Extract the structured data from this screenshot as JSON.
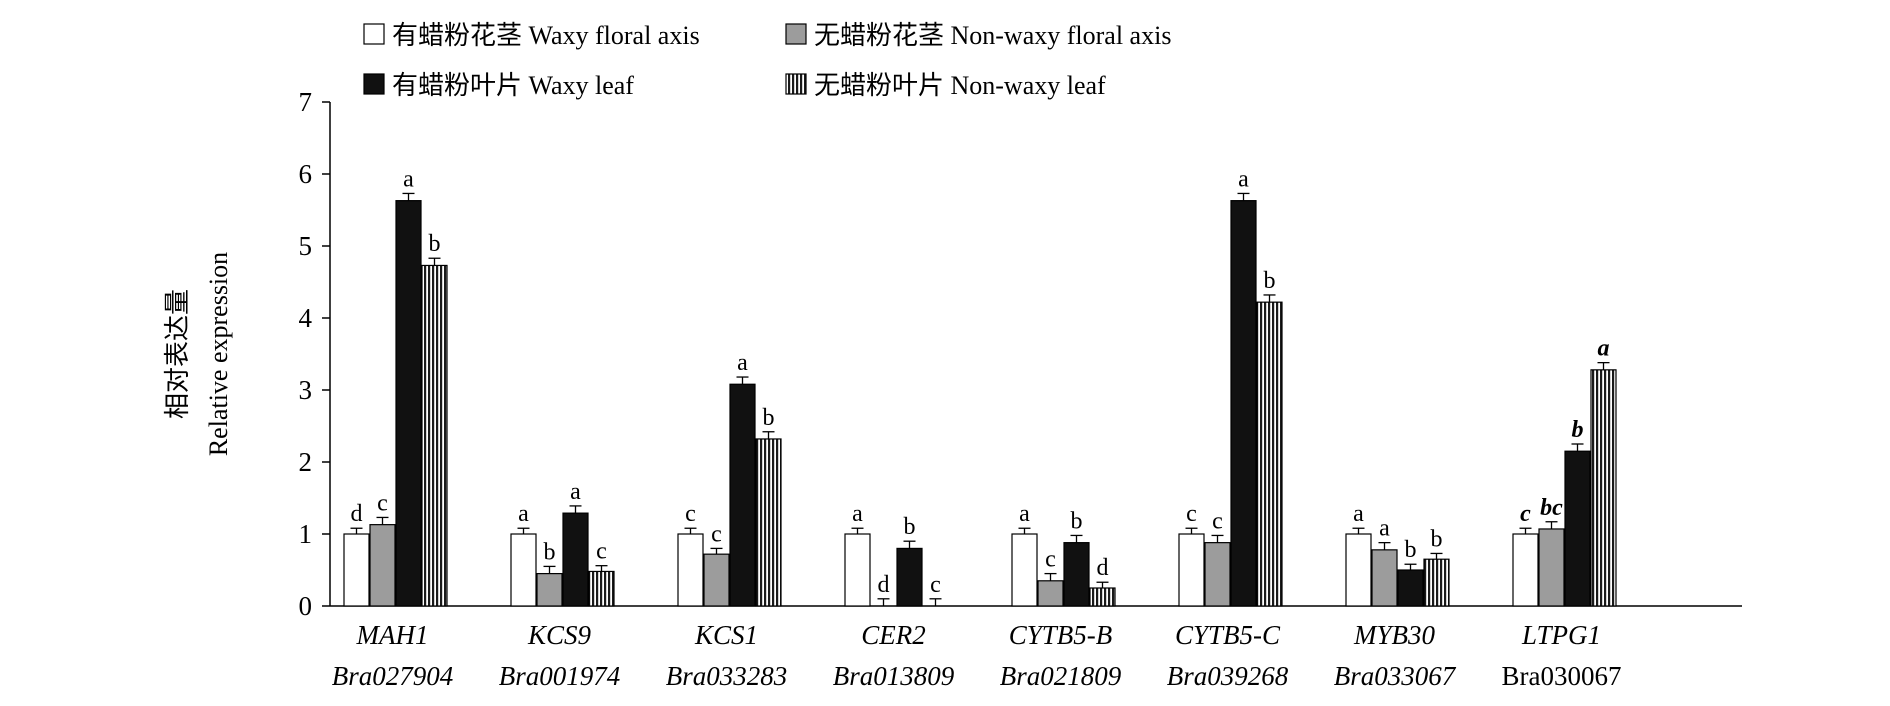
{
  "chart_data": {
    "type": "bar",
    "ylabel_cn": "相对表达量",
    "ylabel_en": "Relative expression",
    "ylim": [
      0,
      7
    ],
    "yticks": [
      "0",
      "1",
      "2",
      "3",
      "4",
      "5",
      "6",
      "7"
    ],
    "grid": false,
    "legend_position": "top",
    "categories": [
      {
        "gene": "MAH1",
        "id": "Bra027904",
        "italic_id": true
      },
      {
        "gene": "KCS9",
        "id": "Bra001974",
        "italic_id": true
      },
      {
        "gene": "KCS1",
        "id": "Bra033283",
        "italic_id": true
      },
      {
        "gene": "CER2",
        "id": "Bra013809",
        "italic_id": true
      },
      {
        "gene": "CYTB5-B",
        "id": "Bra021809",
        "italic_id": true
      },
      {
        "gene": "CYTB5-C",
        "id": "Bra039268",
        "italic_id": true
      },
      {
        "gene": "MYB30",
        "id": "Bra033067",
        "italic_id": true
      },
      {
        "gene": "LTPG1",
        "id": "Bra030067",
        "italic_id": false
      }
    ],
    "series": [
      {
        "name": "有蜡粉花茎 Waxy floral axis",
        "fill": "white",
        "values": [
          1.0,
          1.0,
          1.0,
          1.0,
          1.0,
          1.0,
          1.0,
          1.0
        ],
        "errors": [
          0.08,
          0.08,
          0.08,
          0.08,
          0.08,
          0.08,
          0.08,
          0.08
        ],
        "letters": [
          "d",
          "a",
          "c",
          "a",
          "a",
          "c",
          "a",
          "c"
        ]
      },
      {
        "name": "无蜡粉花茎 Non-waxy floral axis",
        "fill": "gray",
        "values": [
          1.13,
          0.45,
          0.72,
          0.0,
          0.35,
          0.88,
          0.78,
          1.07
        ],
        "errors": [
          0.1,
          0.1,
          0.08,
          0.1,
          0.1,
          0.1,
          0.1,
          0.1
        ],
        "letters": [
          "c",
          "b",
          "c",
          "d",
          "c",
          "c",
          "a",
          "bc"
        ]
      },
      {
        "name": "有蜡粉叶片 Waxy leaf",
        "fill": "black",
        "values": [
          5.63,
          1.29,
          3.08,
          0.8,
          0.88,
          5.63,
          0.5,
          2.15
        ],
        "errors": [
          0.1,
          0.1,
          0.1,
          0.1,
          0.1,
          0.1,
          0.08,
          0.1
        ],
        "letters": [
          "a",
          "a",
          "a",
          "b",
          "b",
          "a",
          "b",
          "b"
        ]
      },
      {
        "name": "无蜡粉叶片 Non-waxy leaf",
        "fill": "striped",
        "values": [
          4.73,
          0.48,
          2.32,
          0.0,
          0.25,
          4.22,
          0.65,
          3.28
        ],
        "errors": [
          0.1,
          0.08,
          0.1,
          0.1,
          0.08,
          0.1,
          0.08,
          0.1
        ],
        "letters": [
          "b",
          "c",
          "b",
          "c",
          "d",
          "b",
          "b",
          "a"
        ]
      }
    ],
    "italic_letter_category": "LTPG1"
  }
}
